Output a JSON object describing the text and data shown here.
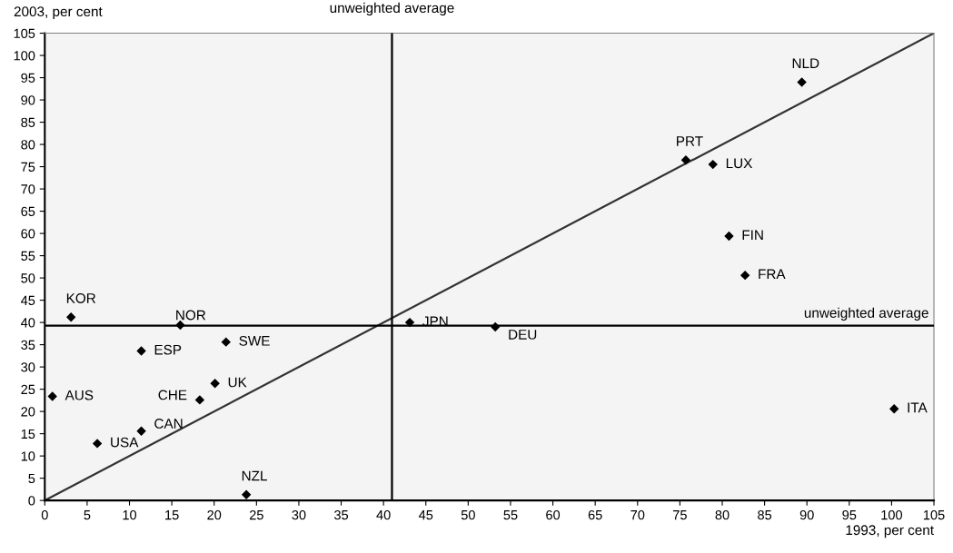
{
  "chart_data": {
    "type": "scatter",
    "xlabel": "1993, per cent",
    "ylabel": "2003, per cent",
    "xlim": [
      0,
      105
    ],
    "ylim": [
      0,
      105
    ],
    "xticks": [
      0,
      5,
      10,
      15,
      20,
      25,
      30,
      35,
      40,
      45,
      50,
      55,
      60,
      65,
      70,
      75,
      80,
      85,
      90,
      95,
      100,
      105
    ],
    "yticks": [
      0,
      5,
      10,
      15,
      20,
      25,
      30,
      35,
      40,
      45,
      50,
      55,
      60,
      65,
      70,
      75,
      80,
      85,
      90,
      95,
      100,
      105
    ],
    "grid": false,
    "marker": "diamond",
    "legend": false,
    "series": [
      {
        "color": "#000000",
        "x": [
          3.1,
          16.0,
          11.4,
          21.4,
          20.1,
          18.3,
          0.9,
          11.4,
          6.2,
          23.8,
          43.1,
          53.2,
          75.7,
          78.9,
          80.8,
          82.7,
          89.4,
          100.3
        ],
        "values": [
          41.2,
          39.4,
          33.6,
          35.6,
          26.3,
          22.6,
          23.4,
          15.6,
          12.8,
          1.3,
          40.0,
          39.0,
          76.5,
          75.5,
          59.4,
          50.6,
          94.0,
          20.6
        ]
      },
      {
        "type": "line",
        "color": "#333333",
        "x": [
          0,
          105
        ],
        "values": [
          0,
          105
        ],
        "marker": "none"
      }
    ],
    "ref_lines": [
      {
        "axis": "x",
        "value": 41,
        "label": "unweighted average",
        "color": "#000000"
      },
      {
        "axis": "y",
        "value": 39.3,
        "label": "unweighted average",
        "color": "#000000"
      }
    ],
    "annotations": [
      {
        "text": "KOR",
        "x": 3.1,
        "y": 41.2
      },
      {
        "text": "NOR",
        "x": 16.0,
        "y": 39.4
      },
      {
        "text": "ESP",
        "x": 11.4,
        "y": 33.6
      },
      {
        "text": "SWE",
        "x": 21.4,
        "y": 35.6
      },
      {
        "text": "UK",
        "x": 20.1,
        "y": 26.3
      },
      {
        "text": "CHE",
        "x": 18.3,
        "y": 22.6
      },
      {
        "text": "AUS",
        "x": 0.9,
        "y": 23.4
      },
      {
        "text": "CAN",
        "x": 11.4,
        "y": 15.6
      },
      {
        "text": "USA",
        "x": 6.2,
        "y": 12.8
      },
      {
        "text": "NZL",
        "x": 23.8,
        "y": 1.3
      },
      {
        "text": "JPN",
        "x": 43.1,
        "y": 40.0
      },
      {
        "text": "DEU",
        "x": 53.2,
        "y": 39.0
      },
      {
        "text": "PRT",
        "x": 75.7,
        "y": 76.5
      },
      {
        "text": "LUX",
        "x": 78.9,
        "y": 75.5
      },
      {
        "text": "FIN",
        "x": 80.8,
        "y": 59.4
      },
      {
        "text": "FRA",
        "x": 82.7,
        "y": 50.6
      },
      {
        "text": "NLD",
        "x": 89.4,
        "y": 94.0
      },
      {
        "text": "ITA",
        "x": 100.3,
        "y": 20.6
      }
    ]
  }
}
